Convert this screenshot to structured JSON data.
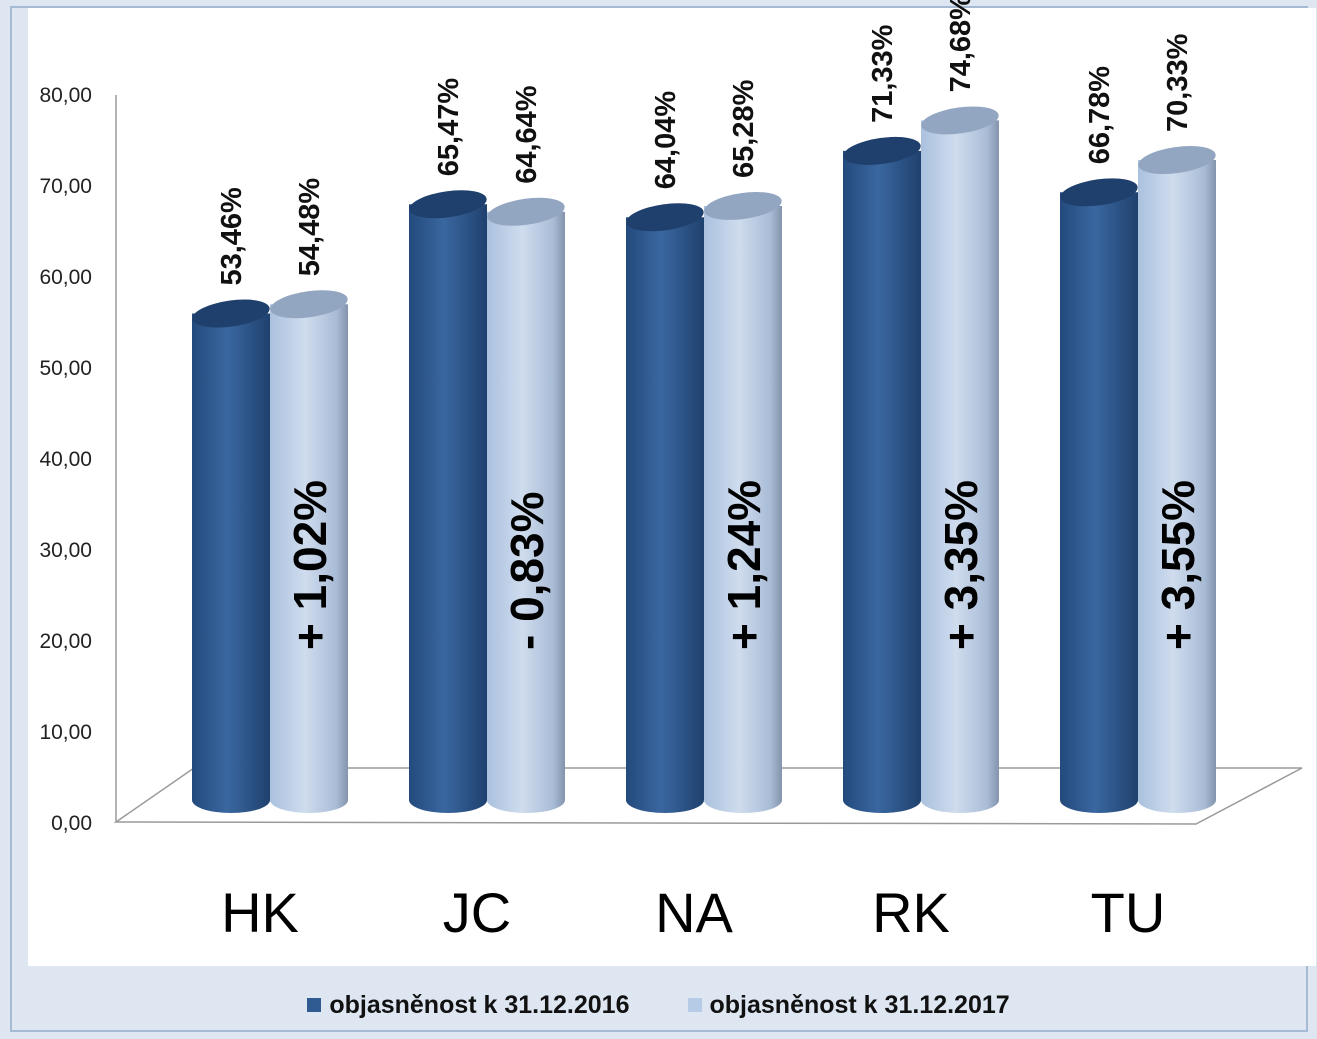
{
  "chart_data": {
    "type": "bar",
    "categories": [
      "HK",
      "JC",
      "NA",
      "RK",
      "TU"
    ],
    "series": [
      {
        "name": "objasněnost k 31.12.2016",
        "values": [
          53.46,
          65.47,
          64.04,
          71.33,
          66.78
        ],
        "labels": [
          "53,46%",
          "65,47%",
          "64,04%",
          "71,33%",
          "66,78%"
        ],
        "color": "#2f5b92"
      },
      {
        "name": "objasněnost k 31.12.2017",
        "values": [
          54.48,
          64.64,
          65.28,
          74.68,
          70.33
        ],
        "labels": [
          "54,48%",
          "64,64%",
          "65,28%",
          "74,68%",
          "70,33%"
        ],
        "color": "#b6cbe6"
      }
    ],
    "annotations": [
      "+ 1,02%",
      "- 0,83%",
      "+ 1,24%",
      "+ 3,35%",
      "+ 3,55%"
    ],
    "yticks": [
      "0,00",
      "10,00",
      "20,00",
      "30,00",
      "40,00",
      "50,00",
      "60,00",
      "70,00",
      "80,00"
    ],
    "ylim": [
      0,
      80
    ],
    "legend_position": "bottom",
    "grid": false,
    "style": "3d-cylinder"
  }
}
